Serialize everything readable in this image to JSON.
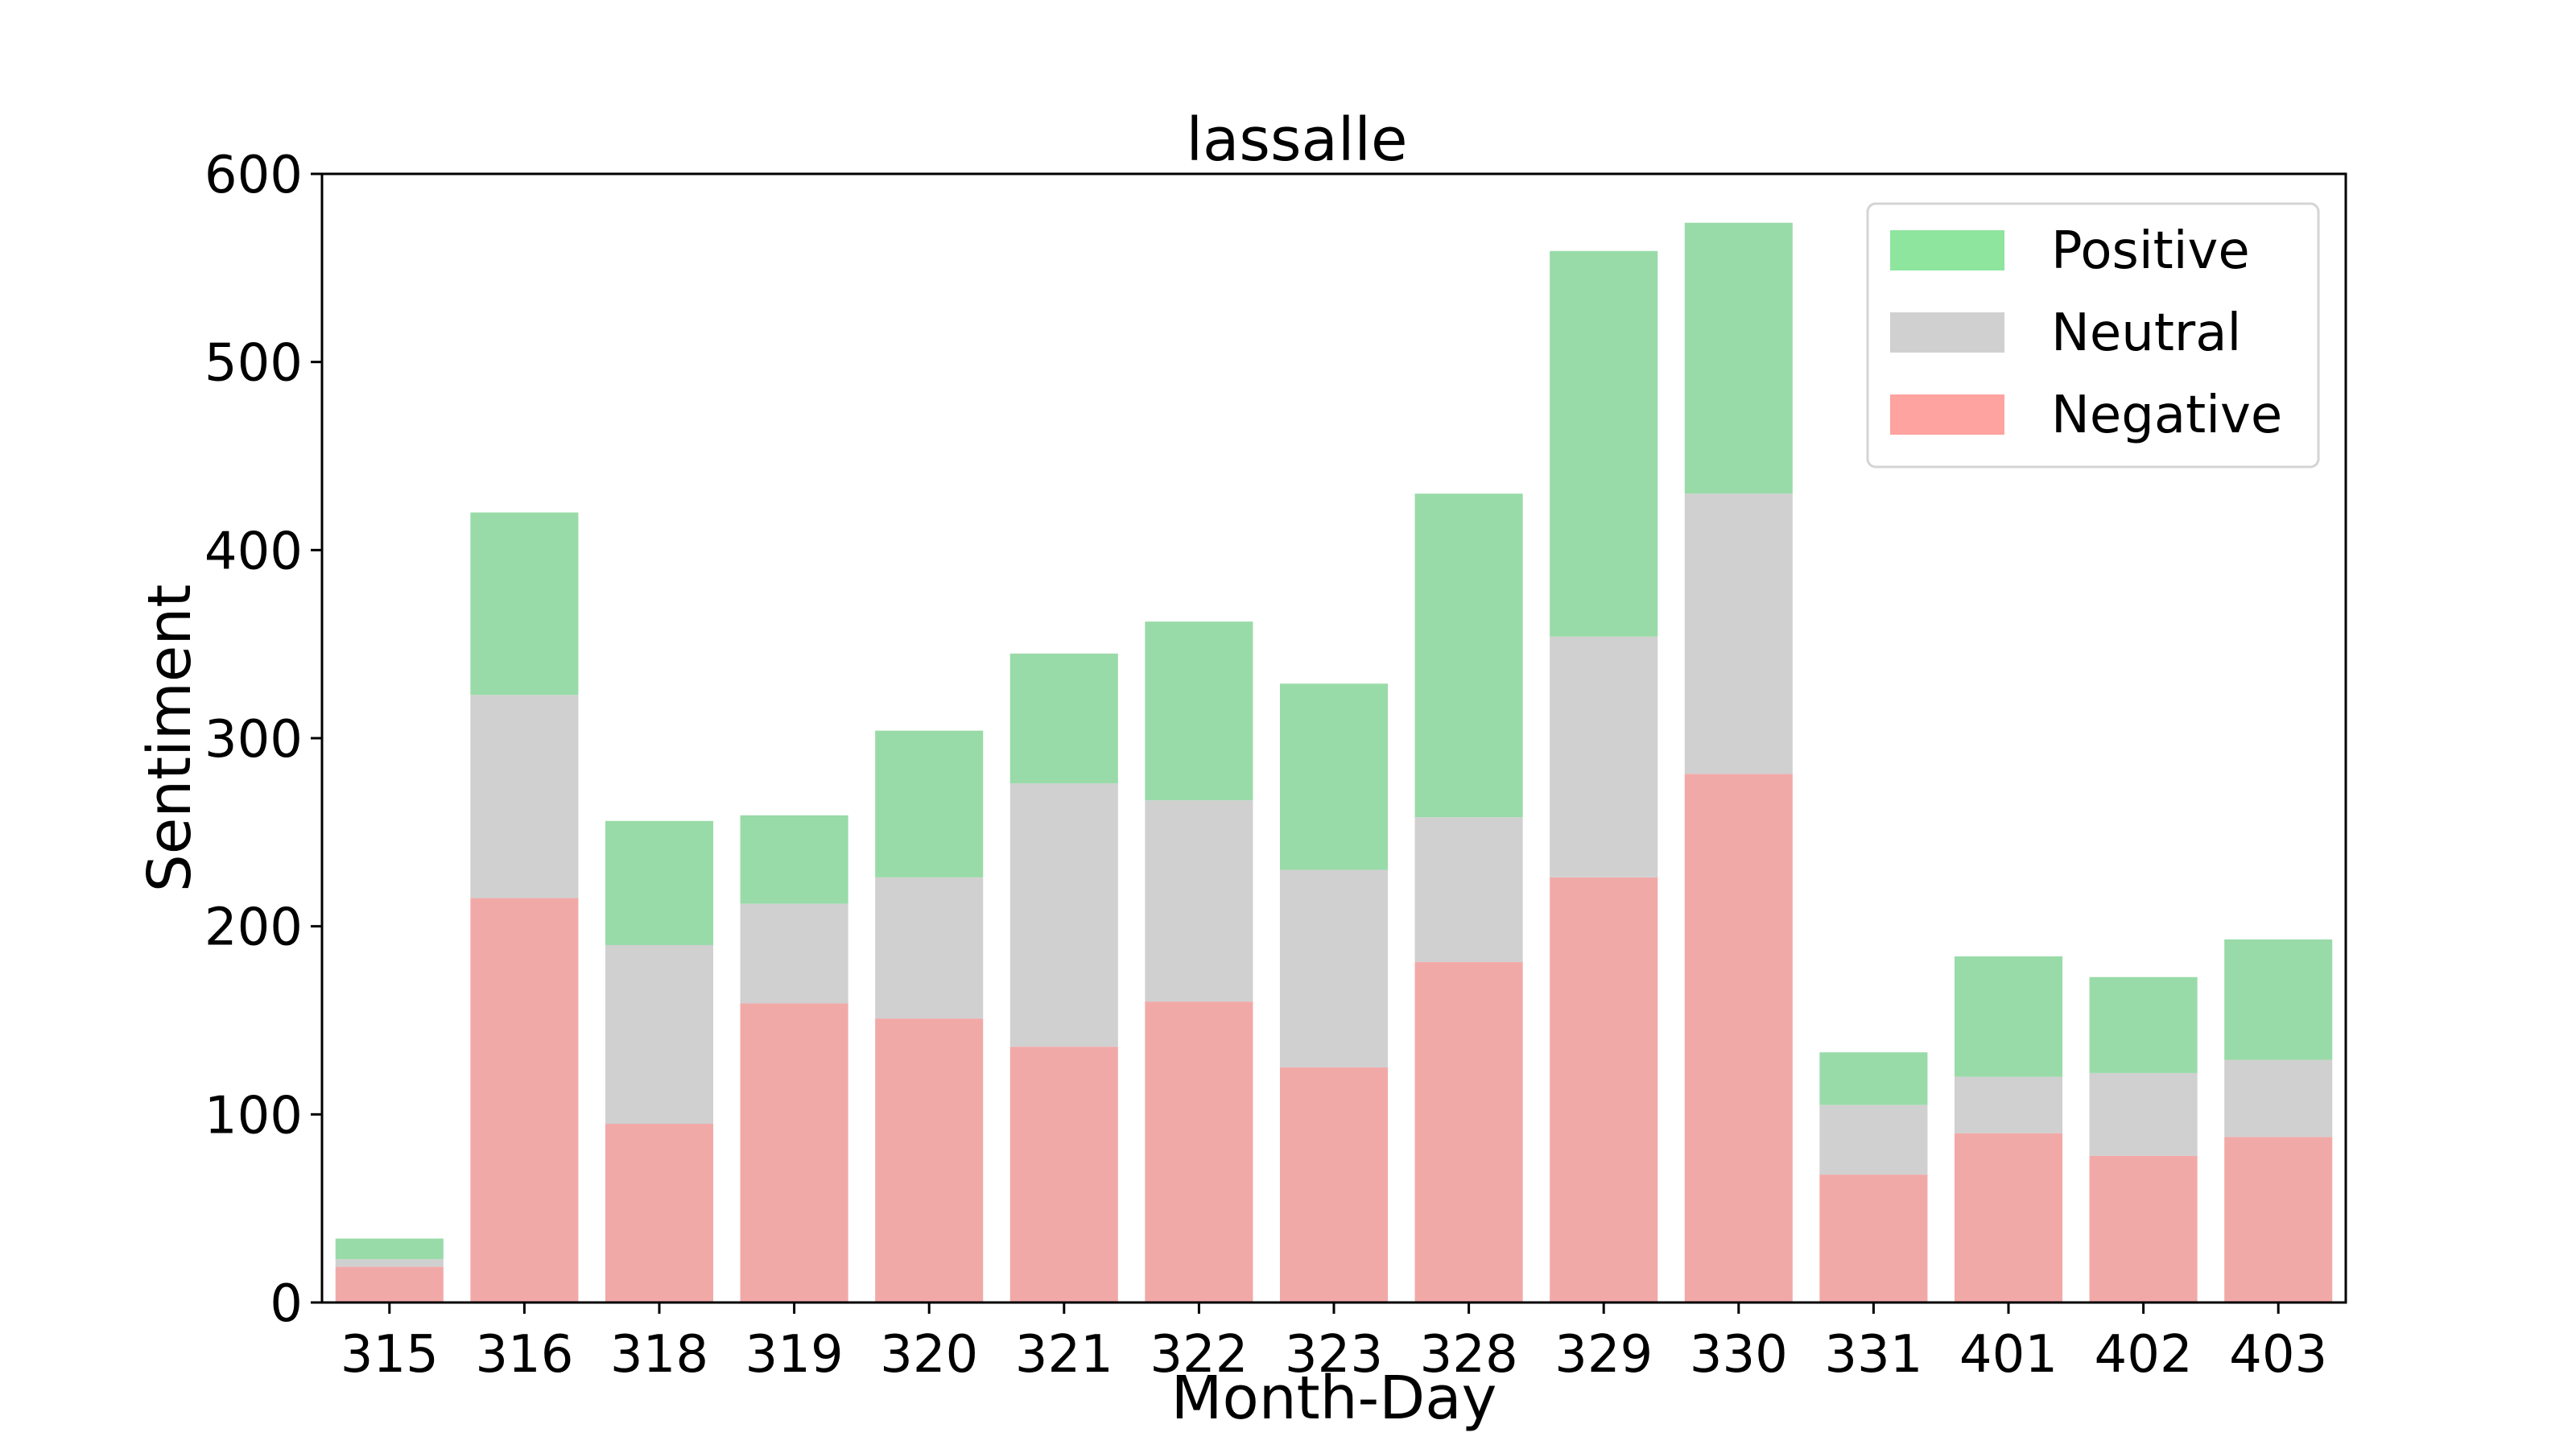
{
  "chart_data": {
    "type": "bar",
    "stacked": true,
    "title": "lassalle",
    "xlabel": "Month-Day",
    "ylabel": "Sentiment",
    "categories": [
      "315",
      "316",
      "318",
      "319",
      "320",
      "321",
      "322",
      "323",
      "328",
      "329",
      "330",
      "331",
      "401",
      "402",
      "403"
    ],
    "ylim": [
      0,
      600
    ],
    "yticks": [
      0,
      100,
      200,
      300,
      400,
      500,
      600
    ],
    "series": [
      {
        "name": "Negative",
        "color": "#f1a9a8",
        "values": [
          19,
          215,
          95,
          159,
          151,
          136,
          160,
          125,
          181,
          226,
          281,
          68,
          90,
          78,
          88
        ]
      },
      {
        "name": "Neutral",
        "color": "#d0d0d0",
        "values": [
          4,
          108,
          95,
          53,
          75,
          140,
          107,
          105,
          77,
          128,
          149,
          37,
          30,
          44,
          41
        ]
      },
      {
        "name": "Positive",
        "color": "#99dba8",
        "values": [
          11,
          97,
          66,
          47,
          78,
          69,
          95,
          99,
          172,
          205,
          144,
          28,
          64,
          51,
          64
        ]
      }
    ],
    "legend": {
      "position": "top-right",
      "entries": [
        {
          "label": "Positive",
          "color": "#8ee59e"
        },
        {
          "label": "Neutral",
          "color": "#d0d0d0"
        },
        {
          "label": "Negative",
          "color": "#fea3a0"
        }
      ]
    },
    "grid": false
  }
}
